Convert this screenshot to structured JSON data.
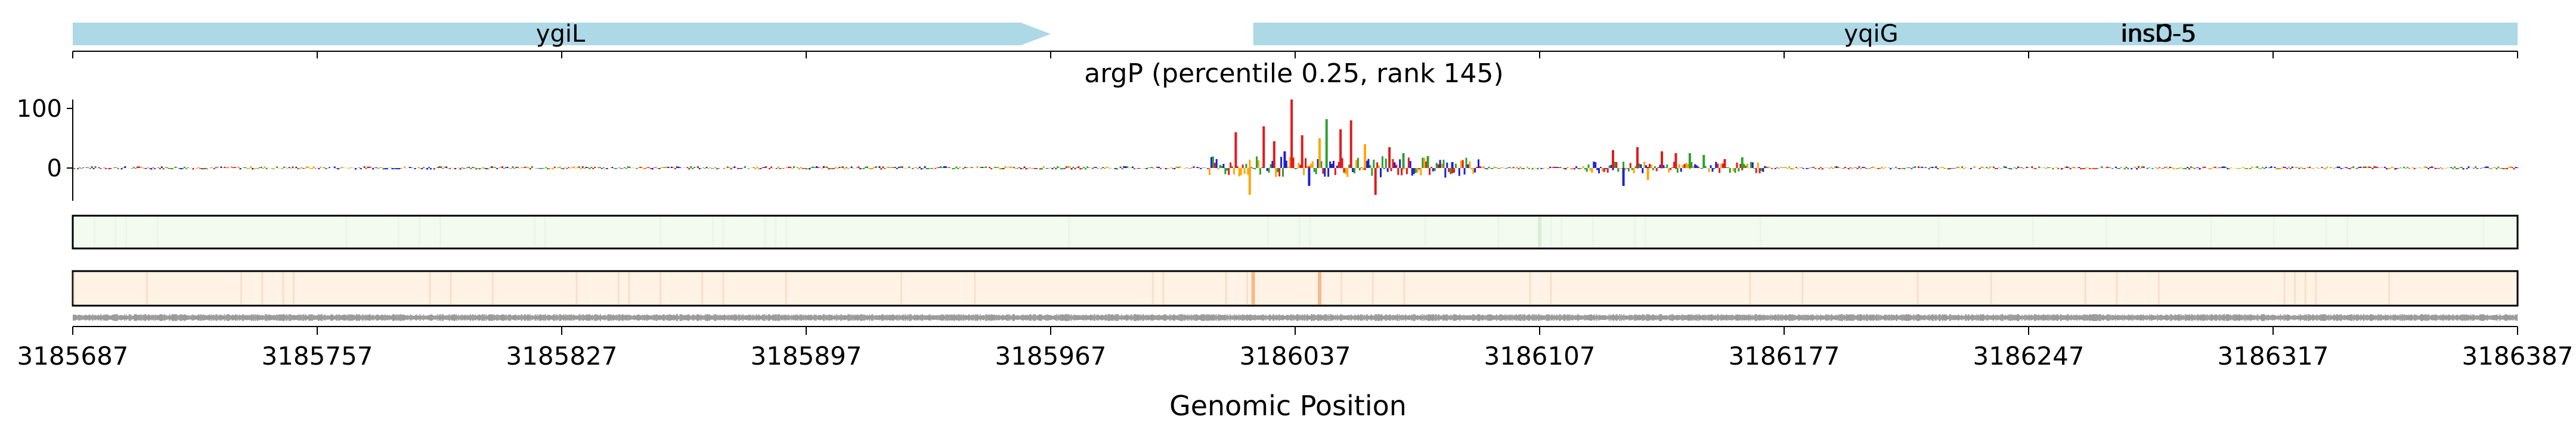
{
  "chart_data": {
    "type": "genome-track",
    "title": "argP (percentile 0.25, rank 145)",
    "xlabel": "Genomic Position",
    "xlim": [
      3185687,
      3186387
    ],
    "x_ticks": [
      3185687,
      3185757,
      3185827,
      3185897,
      3185967,
      3186037,
      3186107,
      3186177,
      3186247,
      3186317,
      3186387
    ],
    "x_tick_labels": [
      "3185687",
      "3185757",
      "3185827",
      "3185897",
      "3185967",
      "3186037",
      "3186107",
      "3186177",
      "3186247",
      "3186317",
      "3186387"
    ],
    "genes": [
      {
        "name": "ygiL",
        "start": 3185687,
        "end": 3185967,
        "strand": "+",
        "color": "#add8e6"
      },
      {
        "name": "yqiG",
        "start": 3186025,
        "end": 3186387,
        "strand": "-",
        "color": "#add8e6"
      },
      {
        "name": "insC-5",
        "start": 3186270,
        "end": 3186387,
        "strand": "+",
        "color": "#add8e6"
      },
      {
        "name": "insD-5",
        "start": 3186270,
        "end": 3186387,
        "strand": "+",
        "color": "#add8e6"
      }
    ],
    "attribution": {
      "ylim": [
        -55,
        115
      ],
      "y_ticks": [
        0,
        100
      ],
      "y_tick_labels": [
        "0",
        "100"
      ],
      "colors": {
        "A": "#2ca02c",
        "C": "#1f1fd6",
        "G": "#ffa500",
        "T": "#e31a1c"
      },
      "peaks": [
        {
          "x": 3186020,
          "y": 60,
          "base": "T"
        },
        {
          "x": 3186024,
          "y": -45,
          "base": "G"
        },
        {
          "x": 3186028,
          "y": 70,
          "base": "T"
        },
        {
          "x": 3186031,
          "y": 45,
          "base": "T"
        },
        {
          "x": 3186034,
          "y": 28,
          "base": "C"
        },
        {
          "x": 3186036,
          "y": 115,
          "base": "T"
        },
        {
          "x": 3186039,
          "y": 55,
          "base": "T"
        },
        {
          "x": 3186041,
          "y": -30,
          "base": "C"
        },
        {
          "x": 3186044,
          "y": 50,
          "base": "G"
        },
        {
          "x": 3186046,
          "y": 82,
          "base": "A"
        },
        {
          "x": 3186050,
          "y": 65,
          "base": "T"
        },
        {
          "x": 3186053,
          "y": 80,
          "base": "T"
        },
        {
          "x": 3186057,
          "y": 40,
          "base": "G"
        },
        {
          "x": 3186060,
          "y": -45,
          "base": "T"
        },
        {
          "x": 3186064,
          "y": 35,
          "base": "T"
        },
        {
          "x": 3186068,
          "y": 25,
          "base": "A"
        },
        {
          "x": 3186075,
          "y": 20,
          "base": "A"
        },
        {
          "x": 3186082,
          "y": 10,
          "base": "C"
        },
        {
          "x": 3186128,
          "y": 30,
          "base": "T"
        },
        {
          "x": 3186131,
          "y": -30,
          "base": "C"
        },
        {
          "x": 3186135,
          "y": 35,
          "base": "T"
        },
        {
          "x": 3186138,
          "y": -20,
          "base": "G"
        },
        {
          "x": 3186142,
          "y": 28,
          "base": "T"
        },
        {
          "x": 3186146,
          "y": 25,
          "base": "T"
        },
        {
          "x": 3186150,
          "y": 25,
          "base": "A"
        },
        {
          "x": 3186154,
          "y": 22,
          "base": "A"
        },
        {
          "x": 3186160,
          "y": 15,
          "base": "T"
        },
        {
          "x": 3186165,
          "y": 18,
          "base": "A"
        }
      ]
    },
    "heat_tracks": [
      {
        "name": "track-1",
        "color": "#f3faf0",
        "accent": "#dbeed3",
        "hot": [
          3186107
        ]
      },
      {
        "name": "track-2",
        "color": "#fff3e6",
        "accent": "#f6b98a",
        "hot": [
          3186025,
          3186044
        ]
      }
    ]
  }
}
